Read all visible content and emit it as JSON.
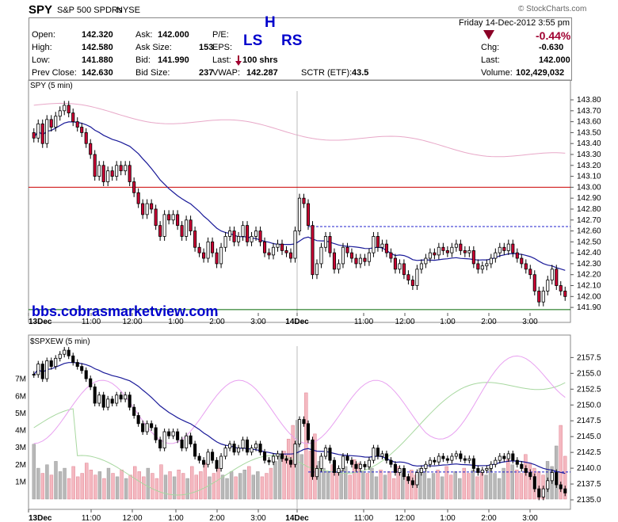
{
  "header": {
    "symbol": "SPY",
    "name": "S&P 500 SPDRs",
    "exchange": "NYSE",
    "copyright": "© StockCharts.com",
    "date_line": "Friday  14-Dec-2012  3:55 pm"
  },
  "quote": {
    "open_label": "Open:",
    "open": "142.320",
    "high_label": "High:",
    "high": "142.580",
    "low_label": "Low:",
    "low": "141.880",
    "prevclose_label": "Prev Close:",
    "prevclose": "142.630",
    "ask_label": "Ask:",
    "ask": "142.000",
    "asksize_label": "Ask Size:",
    "asksize": "153",
    "bid_label": "Bid:",
    "bid": "141.990",
    "bidsize_label": "Bid Size:",
    "bidsize": "237",
    "pe_label": "P/E:",
    "eps_label": "EPS:",
    "last_label": "Last:",
    "last_trade": "100 shrs",
    "vwap_label": "VWAP:",
    "vwap": "142.287",
    "sctr_label": "SCTR (ETF):",
    "sctr": "43.5",
    "pct_change": "-0.44%",
    "chg_label": "Chg:",
    "chg": "-0.630",
    "last2_label": "Last:",
    "last2": "142.000",
    "volume_label": "Volume:",
    "volume": "102,429,032"
  },
  "annotations": {
    "h": "H",
    "ls": "LS",
    "rs": "RS",
    "website": "bbs.cobrasmarketview.com"
  },
  "colors": {
    "up": "#ffffff",
    "down": "#cc0033",
    "ma": "#1a1a99",
    "resistance": "#cc0000",
    "support": "#006600",
    "neckline": "#2222cc",
    "relative_line": "#e8a8c8",
    "green_overlay": "#a8d8a0",
    "pink_overlay": "#e8a0f0",
    "vol_up": "#b8b8b8",
    "vol_down": "#f4b8c0"
  },
  "chart_data": [
    {
      "type": "candlestick",
      "title": "SPY (5 min)",
      "ylim": [
        141.85,
        143.88
      ],
      "y_ticks": [
        "143.80",
        "143.70",
        "143.60",
        "143.50",
        "143.40",
        "143.30",
        "143.20",
        "143.10",
        "143.00",
        "142.90",
        "142.80",
        "142.70",
        "142.60",
        "142.50",
        "142.40",
        "142.30",
        "142.20",
        "142.10",
        "142.00",
        "141.90"
      ],
      "x_ticks": [
        "13Dec",
        "11:00",
        "12:00",
        "1:00",
        "2:00",
        "3:00",
        "14Dec",
        "11:00",
        "12:00",
        "1:00",
        "2:00",
        "3:00"
      ],
      "horizontal_lines": [
        {
          "value": 143.0,
          "style": "solid",
          "color_key": "resistance"
        },
        {
          "value": 141.88,
          "style": "solid",
          "color_key": "support"
        },
        {
          "value": 142.64,
          "style": "dashed",
          "color_key": "neckline",
          "from_index": 63
        }
      ],
      "closes": [
        143.45,
        143.58,
        143.4,
        143.62,
        143.55,
        143.65,
        143.7,
        143.75,
        143.68,
        143.6,
        143.55,
        143.5,
        143.4,
        143.3,
        143.1,
        143.2,
        143.05,
        143.15,
        143.1,
        143.2,
        143.15,
        143.2,
        143.05,
        142.95,
        142.85,
        142.75,
        142.85,
        142.8,
        142.65,
        142.55,
        142.75,
        142.7,
        142.75,
        142.65,
        142.55,
        142.7,
        142.6,
        142.45,
        142.4,
        142.35,
        142.5,
        142.4,
        142.3,
        142.45,
        142.55,
        142.6,
        142.5,
        142.55,
        142.65,
        142.5,
        142.55,
        142.6,
        142.5,
        142.4,
        142.38,
        142.45,
        142.48,
        142.42,
        142.4,
        142.35,
        142.6,
        142.9,
        142.85,
        142.65,
        142.2,
        142.3,
        142.45,
        142.55,
        142.4,
        142.25,
        142.3,
        142.45,
        142.4,
        142.35,
        142.3,
        142.35,
        142.32,
        142.4,
        142.55,
        142.45,
        142.48,
        142.4,
        142.35,
        142.25,
        142.3,
        142.2,
        142.15,
        142.1,
        142.25,
        142.3,
        142.35,
        142.4,
        142.38,
        142.45,
        142.42,
        142.4,
        142.45,
        142.48,
        142.42,
        142.4,
        142.42,
        142.3,
        142.25,
        142.28,
        142.3,
        142.35,
        142.4,
        142.45,
        142.42,
        142.48,
        142.4,
        142.35,
        142.3,
        142.25,
        142.2,
        142.05,
        141.95,
        142.05,
        142.15,
        142.25,
        142.1,
        142.05,
        142.0
      ]
    },
    {
      "type": "candlestick",
      "title": "$SPXEW (5 min)",
      "ylim": [
        2133.5,
        2159.3
      ],
      "y_ticks": [
        "2157.5",
        "2155.0",
        "2152.5",
        "2150.0",
        "2147.5",
        "2145.0",
        "2142.5",
        "2140.0",
        "2137.5",
        "2135.0"
      ],
      "vol_ticks": [
        "7M",
        "6M",
        "5M",
        "4M",
        "3M",
        "2M",
        "1M"
      ],
      "x_ticks": [
        "13Dec",
        "11:00",
        "12:00",
        "1:00",
        "2:00",
        "3:00",
        "14Dec",
        "11:00",
        "12:00",
        "1:00",
        "2:00",
        "3:00"
      ],
      "horizontal_lines": [
        {
          "value": 2139.4,
          "style": "dashed",
          "color_key": "neckline",
          "from_index": 63
        }
      ],
      "volume_millions": [
        3.2,
        1.8,
        1.5,
        2.0,
        1.4,
        2.2,
        1.6,
        1.8,
        1.2,
        1.9,
        1.3,
        1.5,
        2.1,
        1.7,
        1.4,
        1.6,
        1.2,
        1.8,
        1.5,
        1.3,
        1.7,
        1.2,
        1.4,
        1.9,
        1.6,
        1.3,
        1.8,
        1.5,
        1.2,
        2.0,
        1.4,
        1.6,
        1.3,
        1.7,
        1.5,
        1.2,
        1.9,
        1.4,
        1.6,
        2.1,
        1.3,
        1.5,
        1.8,
        1.4,
        1.2,
        1.6,
        1.3,
        1.5,
        1.7,
        1.9,
        1.4,
        1.6,
        1.3,
        1.5,
        1.8,
        2.2,
        2.5,
        2.8,
        3.5,
        4.3,
        4.6,
        2.6,
        6.2,
        2.8,
        3.8,
        2.2,
        1.8,
        1.6,
        2.0,
        1.5,
        1.7,
        1.9,
        1.4,
        2.3,
        2.1,
        1.6,
        1.5,
        1.8,
        1.3,
        1.7,
        1.4,
        1.6,
        1.2,
        1.9,
        1.5,
        1.3,
        1.7,
        1.4,
        1.8,
        1.6,
        1.2,
        1.5,
        1.7,
        1.3,
        1.9,
        1.4,
        1.6,
        1.2,
        1.8,
        1.5,
        1.7,
        1.3,
        1.6,
        1.4,
        1.9,
        1.5,
        1.2,
        1.8,
        2.3,
        2.0,
        1.7,
        1.5,
        2.6,
        2.1,
        1.8,
        1.6,
        1.4,
        2.2,
        1.9,
        3.1,
        4.3,
        2.5
      ]
    }
  ]
}
